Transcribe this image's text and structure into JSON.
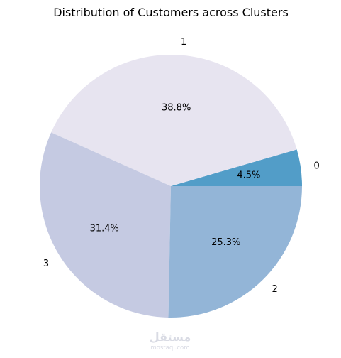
{
  "chart_data": {
    "type": "pie",
    "title": "Distribution of Customers across Clusters",
    "slices": [
      {
        "label": "0",
        "value": 4.5,
        "pct_label": "4.5%",
        "color": "#529dc8"
      },
      {
        "label": "1",
        "value": 38.8,
        "pct_label": "38.8%",
        "color": "#e7e4f0"
      },
      {
        "label": "3",
        "value": 31.4,
        "pct_label": "31.4%",
        "color": "#c5cae2"
      },
      {
        "label": "2",
        "value": 25.3,
        "pct_label": "25.3%",
        "color": "#93b5d7"
      }
    ],
    "start_angle_deg": 0,
    "direction": "counterclockwise"
  },
  "watermark": {
    "arabic": "مستقل",
    "latin": "mostaql.com"
  }
}
